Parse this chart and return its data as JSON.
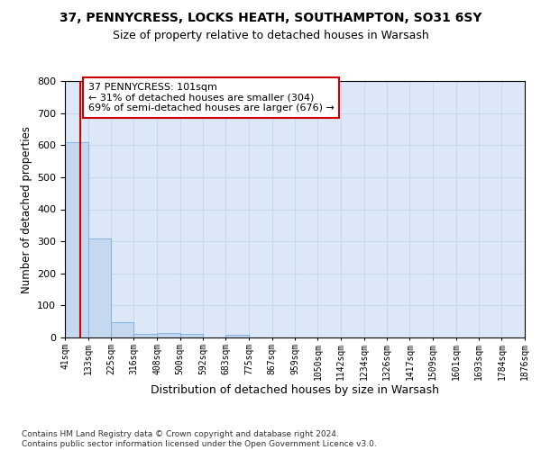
{
  "title": "37, PENNYCRESS, LOCKS HEATH, SOUTHAMPTON, SO31 6SY",
  "subtitle": "Size of property relative to detached houses in Warsash",
  "xlabel": "Distribution of detached houses by size in Warsash",
  "ylabel": "Number of detached properties",
  "footer_line1": "Contains HM Land Registry data © Crown copyright and database right 2024.",
  "footer_line2": "Contains public sector information licensed under the Open Government Licence v3.0.",
  "bin_edges": [
    41,
    133,
    225,
    316,
    408,
    500,
    592,
    683,
    775,
    867,
    959,
    1050,
    1142,
    1234,
    1326,
    1417,
    1509,
    1601,
    1693,
    1784,
    1876
  ],
  "bar_heights": [
    608,
    310,
    48,
    10,
    14,
    12,
    0,
    8,
    0,
    0,
    0,
    0,
    0,
    0,
    0,
    0,
    0,
    0,
    0,
    0
  ],
  "bar_color": "#c5d8f0",
  "bar_edge_color": "#7aace0",
  "grid_color": "#c8d8ee",
  "background_color": "#dce8f8",
  "property_size": 101,
  "annotation_line1": "37 PENNYCRESS: 101sqm",
  "annotation_line2": "← 31% of detached houses are smaller (304)",
  "annotation_line3": "69% of semi-detached houses are larger (676) →",
  "annotation_box_color": "#ffffff",
  "annotation_border_color": "#cc0000",
  "vline_color": "#cc0000",
  "ylim": [
    0,
    800
  ],
  "yticks": [
    0,
    100,
    200,
    300,
    400,
    500,
    600,
    700,
    800
  ],
  "tick_labels": [
    "41sqm",
    "133sqm",
    "225sqm",
    "316sqm",
    "408sqm",
    "500sqm",
    "592sqm",
    "683sqm",
    "775sqm",
    "867sqm",
    "959sqm",
    "1050sqm",
    "1142sqm",
    "1234sqm",
    "1326sqm",
    "1417sqm",
    "1509sqm",
    "1601sqm",
    "1693sqm",
    "1784sqm",
    "1876sqm"
  ]
}
